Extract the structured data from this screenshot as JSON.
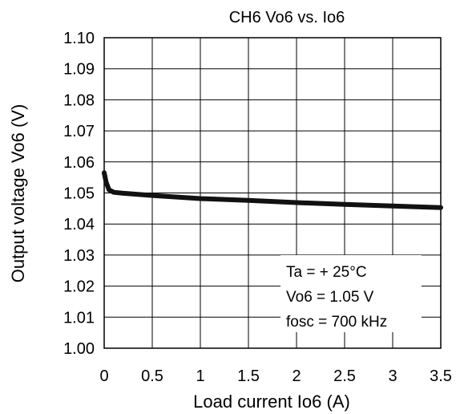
{
  "chart_data": {
    "type": "line",
    "title": "CH6 Vo6 vs. Io6",
    "xlabel": "Load current Io6 (A)",
    "ylabel": "Output voltage Vo6 (V)",
    "xlim": [
      0,
      3.5
    ],
    "ylim": [
      1.0,
      1.1
    ],
    "x_ticks": [
      "0",
      "0.5",
      "1",
      "1.5",
      "2",
      "2.5",
      "3",
      "3.5"
    ],
    "y_ticks": [
      "1.00",
      "1.01",
      "1.02",
      "1.03",
      "1.04",
      "1.05",
      "1.06",
      "1.07",
      "1.08",
      "1.09",
      "1.10"
    ],
    "grid": true,
    "annotations": [
      "Ta = + 25°C",
      "Vo6 = 1.05 V",
      "fosc = 700 kHz"
    ],
    "series": [
      {
        "line_color": "#111111",
        "x": [
          0.0,
          0.02,
          0.05,
          0.1,
          0.2,
          0.5,
          1.0,
          1.5,
          2.0,
          2.5,
          3.0,
          3.5
        ],
        "y": [
          1.0565,
          1.0535,
          1.051,
          1.0502,
          1.0499,
          1.0492,
          1.0482,
          1.0476,
          1.0469,
          1.0463,
          1.0458,
          1.0453
        ]
      }
    ]
  }
}
